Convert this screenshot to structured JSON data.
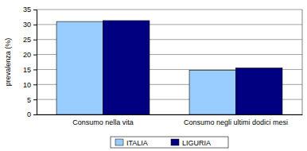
{
  "chart_data": {
    "type": "bar",
    "y_label": "prevalenza (%)",
    "categories": [
      "Consumo nella vita",
      "Consumo negli ultimi dodici mesi"
    ],
    "series": [
      {
        "name": "ITALIA",
        "color": "#99ccff",
        "values": [
          31,
          14.7
        ]
      },
      {
        "name": "LIGURIA",
        "color": "#000080",
        "values": [
          31.3,
          15.5
        ]
      }
    ],
    "ylim": [
      0,
      35
    ],
    "yticks": [
      0,
      5,
      10,
      15,
      20,
      25,
      30,
      35
    ],
    "grid": true,
    "legend": "bottom"
  }
}
